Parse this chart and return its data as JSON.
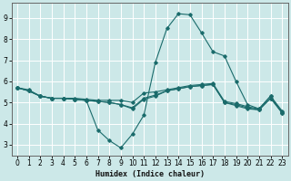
{
  "xlabel": "Humidex (Indice chaleur)",
  "bg_color": "#cce8e8",
  "line_color": "#1a6b6b",
  "grid_color": "#ffffff",
  "xlim": [
    -0.5,
    23.5
  ],
  "ylim": [
    2.5,
    9.7
  ],
  "xticks": [
    0,
    1,
    2,
    3,
    4,
    5,
    6,
    7,
    8,
    9,
    10,
    11,
    12,
    13,
    14,
    15,
    16,
    17,
    18,
    19,
    20,
    21,
    22,
    23
  ],
  "yticks": [
    3,
    4,
    5,
    6,
    7,
    8,
    9
  ],
  "series": [
    {
      "x": [
        0,
        1,
        2,
        3,
        4,
        5,
        6,
        7,
        8,
        9,
        10,
        11,
        12,
        13,
        14,
        15,
        16,
        17,
        18,
        19,
        20,
        21,
        22,
        23
      ],
      "y": [
        5.7,
        5.6,
        5.3,
        5.2,
        5.2,
        5.2,
        5.15,
        5.1,
        5.1,
        5.1,
        5.0,
        5.45,
        5.5,
        5.6,
        5.7,
        5.8,
        5.85,
        5.9,
        5.05,
        4.95,
        4.8,
        4.7,
        5.3,
        4.6
      ]
    },
    {
      "x": [
        0,
        1,
        2,
        3,
        4,
        5,
        6,
        7,
        8,
        9,
        10,
        11,
        12,
        13,
        14,
        15,
        16,
        17,
        18,
        19,
        20,
        21,
        22,
        23
      ],
      "y": [
        5.7,
        5.55,
        5.3,
        5.2,
        5.2,
        5.15,
        5.1,
        5.05,
        5.0,
        4.9,
        4.75,
        5.2,
        5.35,
        5.55,
        5.65,
        5.75,
        5.8,
        5.85,
        5.0,
        4.9,
        4.75,
        4.65,
        5.2,
        4.55
      ]
    },
    {
      "x": [
        0,
        1,
        2,
        3,
        4,
        5,
        6,
        7,
        8,
        9,
        10,
        11,
        12,
        13,
        14,
        15,
        16,
        17,
        18,
        19,
        20,
        21,
        22,
        23
      ],
      "y": [
        5.7,
        5.55,
        5.3,
        5.2,
        5.2,
        5.15,
        5.1,
        3.7,
        3.2,
        2.85,
        3.5,
        4.4,
        6.9,
        8.5,
        9.2,
        9.15,
        8.3,
        7.4,
        7.2,
        6.0,
        4.9,
        4.7,
        5.3,
        4.5
      ]
    },
    {
      "x": [
        0,
        1,
        2,
        3,
        4,
        5,
        6,
        7,
        8,
        9,
        10,
        11,
        12,
        13,
        14,
        15,
        16,
        17,
        18,
        19,
        20,
        21,
        22,
        23
      ],
      "y": [
        5.7,
        5.55,
        5.3,
        5.2,
        5.2,
        5.15,
        5.1,
        5.05,
        5.0,
        4.9,
        4.7,
        5.15,
        5.3,
        5.55,
        5.65,
        5.75,
        5.8,
        5.85,
        5.0,
        4.85,
        4.7,
        4.65,
        5.2,
        4.5
      ]
    }
  ]
}
